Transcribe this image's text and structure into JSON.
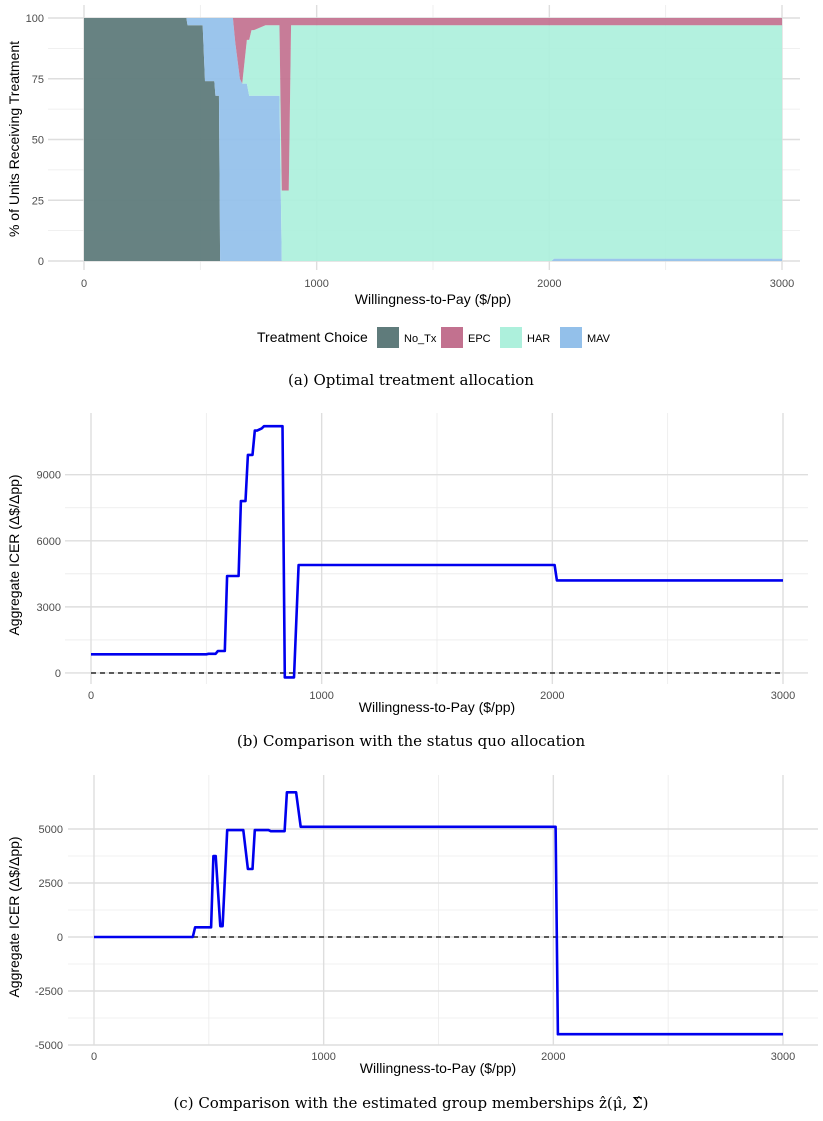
{
  "chart_data": [
    {
      "type": "area",
      "stacked": true,
      "caption": "(a) Optimal treatment allocation",
      "xlabel": "Willingness-to-Pay ($/pp)",
      "ylabel": "% of Units Receiving Treatment",
      "xlim": [
        0,
        3000
      ],
      "ylim": [
        0,
        100
      ],
      "xticks": [
        "0",
        "1000",
        "2000",
        "3000"
      ],
      "yticks": [
        "0",
        "25",
        "50",
        "75",
        "100"
      ],
      "grid": true,
      "legend": {
        "title": "Treatment Choice",
        "placement": "bottom",
        "items": [
          {
            "name": "No_Tx",
            "color": "#5f7b7b"
          },
          {
            "name": "EPC",
            "color": "#c2718f"
          },
          {
            "name": "HAR",
            "color": "#adf0dc"
          },
          {
            "name": "MAV",
            "color": "#93c0ea"
          }
        ]
      },
      "x": [
        0,
        440,
        445,
        510,
        520,
        560,
        565,
        580,
        585,
        640,
        650,
        670,
        680,
        700,
        710,
        720,
        730,
        780,
        790,
        840,
        850,
        880,
        890,
        1000,
        1500,
        2000,
        2010,
        2020,
        2500,
        3000
      ],
      "series": [
        {
          "name": "No_Tx",
          "values": [
            100,
            100,
            97,
            97,
            74,
            74,
            68,
            68,
            0,
            0,
            0,
            0,
            0,
            0,
            0,
            0,
            0,
            0,
            0,
            0,
            0,
            0,
            0,
            0,
            0,
            0,
            0,
            0,
            0,
            0
          ]
        },
        {
          "name": "MAV",
          "values": [
            0,
            0,
            3,
            3,
            26,
            26,
            32,
            32,
            100,
            100,
            90,
            75,
            73,
            73,
            68,
            68,
            68,
            68,
            68,
            68,
            0,
            0,
            0,
            0,
            0,
            0,
            0,
            1,
            1,
            1
          ]
        },
        {
          "name": "HAR",
          "values": [
            0,
            0,
            0,
            0,
            0,
            0,
            0,
            0,
            0,
            0,
            0,
            0,
            0,
            18,
            23,
            27,
            27,
            29,
            29,
            29,
            29,
            29,
            97,
            97,
            97,
            97,
            97,
            96,
            96,
            96
          ]
        },
        {
          "name": "EPC",
          "values": [
            0,
            0,
            0,
            0,
            0,
            0,
            0,
            0,
            0,
            0,
            10,
            25,
            27,
            9,
            9,
            5,
            5,
            3,
            3,
            3,
            71,
            71,
            3,
            3,
            3,
            3,
            3,
            3,
            3,
            3
          ]
        }
      ]
    },
    {
      "type": "line",
      "caption": "(b) Comparison with the status quo allocation",
      "xlabel": "Willingness-to-Pay ($/pp)",
      "ylabel": "Aggregate ICER (Δ$/Δpp)",
      "xlim": [
        0,
        3000
      ],
      "ylim": [
        -500,
        11800
      ],
      "xticks": [
        "0",
        "1000",
        "2000",
        "3000"
      ],
      "yticks": [
        "0",
        "3000",
        "6000",
        "9000"
      ],
      "reference_line": {
        "y": 0,
        "style": "dashed"
      },
      "series_color": "#0000ee",
      "x": [
        0,
        500,
        510,
        540,
        550,
        580,
        590,
        640,
        650,
        670,
        680,
        700,
        710,
        720,
        740,
        750,
        780,
        790,
        830,
        840,
        880,
        900,
        2010,
        2020,
        3000
      ],
      "values": [
        850,
        850,
        870,
        870,
        1000,
        1000,
        4400,
        4400,
        7800,
        7800,
        9900,
        9900,
        11000,
        11000,
        11100,
        11200,
        11200,
        11200,
        11200,
        -200,
        -200,
        4900,
        4900,
        4200,
        4200
      ]
    },
    {
      "type": "line",
      "caption": "(c) Comparison with the estimated group memberships ẑ(μ̂, Σ̂)",
      "xlabel": "Willingness-to-Pay ($/pp)",
      "ylabel": "Aggregate ICER (Δ$/Δpp)",
      "xlim": [
        0,
        3000
      ],
      "ylim": [
        -5000,
        7500
      ],
      "xticks": [
        "0",
        "1000",
        "2000",
        "3000"
      ],
      "yticks": [
        "-5000",
        "-2500",
        "0",
        "2500",
        "5000"
      ],
      "reference_line": {
        "y": 0,
        "style": "dashed"
      },
      "series_color": "#0000ee",
      "x": [
        0,
        430,
        440,
        500,
        510,
        520,
        530,
        550,
        560,
        580,
        590,
        650,
        670,
        680,
        690,
        700,
        720,
        760,
        770,
        830,
        840,
        870,
        880,
        900,
        2010,
        2020,
        3000
      ],
      "values": [
        0,
        0,
        450,
        450,
        450,
        3750,
        3750,
        500,
        500,
        4950,
        4950,
        4950,
        3150,
        3150,
        3150,
        4950,
        4950,
        4950,
        4900,
        4900,
        6700,
        6700,
        6700,
        5100,
        5100,
        -4500,
        -4500
      ]
    }
  ]
}
